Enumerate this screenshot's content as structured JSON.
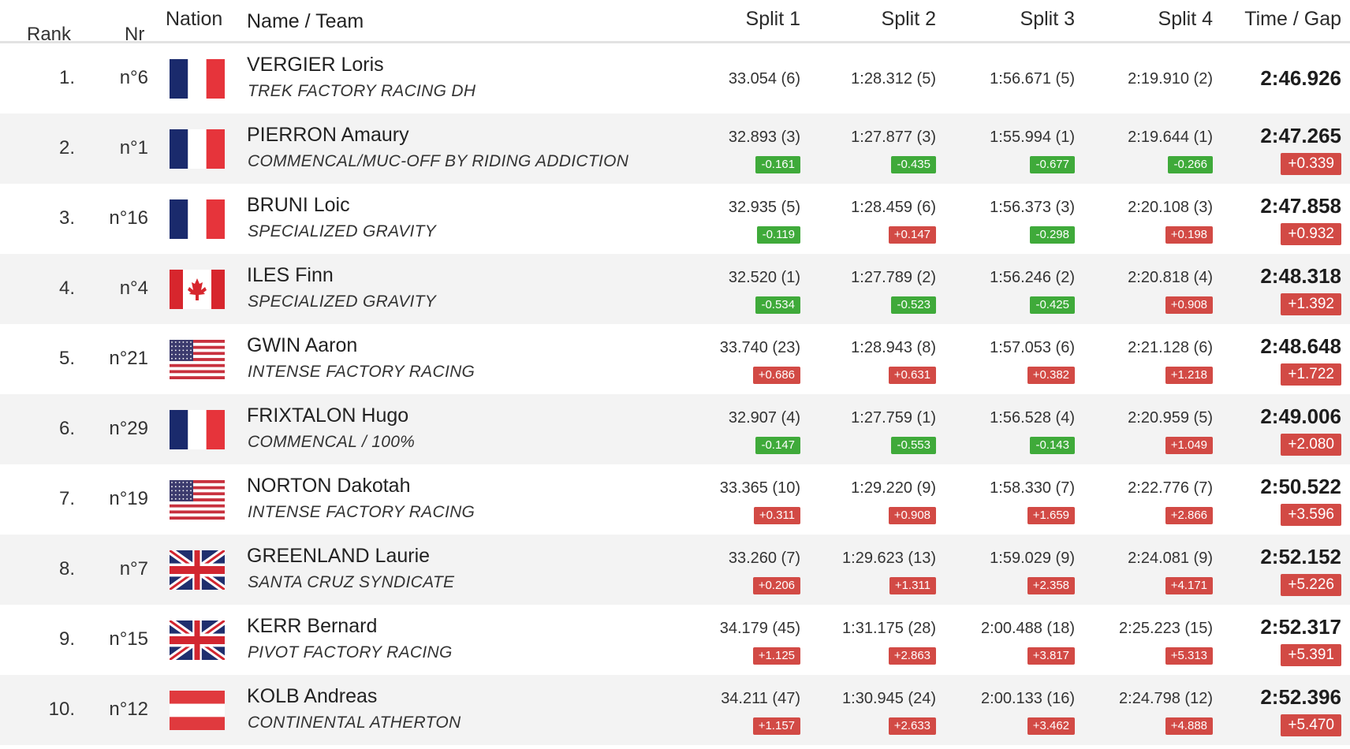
{
  "columns": {
    "rank": "Rank",
    "nr": "Nr",
    "nation": "Nation",
    "name_team": "Name / Team",
    "split1": "Split 1",
    "split2": "Split 2",
    "split3": "Split 3",
    "split4": "Split 4",
    "time_gap": "Time / Gap"
  },
  "rows": [
    {
      "rank": "1.",
      "nr": "n°6",
      "nation": "France",
      "flag_icon": "flag-france-icon",
      "name": "VERGIER Loris",
      "team": "TREK FACTORY RACING DH",
      "splits": [
        {
          "value": "33.054 (6)",
          "diff": ""
        },
        {
          "value": "1:28.312 (5)",
          "diff": ""
        },
        {
          "value": "1:56.671 (5)",
          "diff": ""
        },
        {
          "value": "2:19.910 (2)",
          "diff": ""
        }
      ],
      "time": "2:46.926",
      "gap": ""
    },
    {
      "rank": "2.",
      "nr": "n°1",
      "nation": "France",
      "flag_icon": "flag-france-icon",
      "name": "PIERRON Amaury",
      "team": "COMMENCAL/MUC-OFF BY RIDING ADDICTION",
      "splits": [
        {
          "value": "32.893 (3)",
          "diff": "-0.161"
        },
        {
          "value": "1:27.877 (3)",
          "diff": "-0.435"
        },
        {
          "value": "1:55.994 (1)",
          "diff": "-0.677"
        },
        {
          "value": "2:19.644 (1)",
          "diff": "-0.266"
        }
      ],
      "time": "2:47.265",
      "gap": "+0.339"
    },
    {
      "rank": "3.",
      "nr": "n°16",
      "nation": "France",
      "flag_icon": "flag-france-icon",
      "name": "BRUNI Loic",
      "team": "SPECIALIZED GRAVITY",
      "splits": [
        {
          "value": "32.935 (5)",
          "diff": "-0.119"
        },
        {
          "value": "1:28.459 (6)",
          "diff": "+0.147"
        },
        {
          "value": "1:56.373 (3)",
          "diff": "-0.298"
        },
        {
          "value": "2:20.108 (3)",
          "diff": "+0.198"
        }
      ],
      "time": "2:47.858",
      "gap": "+0.932"
    },
    {
      "rank": "4.",
      "nr": "n°4",
      "nation": "Canada",
      "flag_icon": "flag-canada-icon",
      "name": "ILES Finn",
      "team": "SPECIALIZED GRAVITY",
      "splits": [
        {
          "value": "32.520 (1)",
          "diff": "-0.534"
        },
        {
          "value": "1:27.789 (2)",
          "diff": "-0.523"
        },
        {
          "value": "1:56.246 (2)",
          "diff": "-0.425"
        },
        {
          "value": "2:20.818 (4)",
          "diff": "+0.908"
        }
      ],
      "time": "2:48.318",
      "gap": "+1.392"
    },
    {
      "rank": "5.",
      "nr": "n°21",
      "nation": "USA",
      "flag_icon": "flag-usa-icon",
      "name": "GWIN Aaron",
      "team": "INTENSE FACTORY RACING",
      "splits": [
        {
          "value": "33.740 (23)",
          "diff": "+0.686"
        },
        {
          "value": "1:28.943 (8)",
          "diff": "+0.631"
        },
        {
          "value": "1:57.053 (6)",
          "diff": "+0.382"
        },
        {
          "value": "2:21.128 (6)",
          "diff": "+1.218"
        }
      ],
      "time": "2:48.648",
      "gap": "+1.722"
    },
    {
      "rank": "6.",
      "nr": "n°29",
      "nation": "France",
      "flag_icon": "flag-france-icon",
      "name": "FRIXTALON Hugo",
      "team": "COMMENCAL / 100%",
      "splits": [
        {
          "value": "32.907 (4)",
          "diff": "-0.147"
        },
        {
          "value": "1:27.759 (1)",
          "diff": "-0.553"
        },
        {
          "value": "1:56.528 (4)",
          "diff": "-0.143"
        },
        {
          "value": "2:20.959 (5)",
          "diff": "+1.049"
        }
      ],
      "time": "2:49.006",
      "gap": "+2.080"
    },
    {
      "rank": "7.",
      "nr": "n°19",
      "nation": "USA",
      "flag_icon": "flag-usa-icon",
      "name": "NORTON Dakotah",
      "team": "INTENSE FACTORY RACING",
      "splits": [
        {
          "value": "33.365 (10)",
          "diff": "+0.311"
        },
        {
          "value": "1:29.220 (9)",
          "diff": "+0.908"
        },
        {
          "value": "1:58.330 (7)",
          "diff": "+1.659"
        },
        {
          "value": "2:22.776 (7)",
          "diff": "+2.866"
        }
      ],
      "time": "2:50.522",
      "gap": "+3.596"
    },
    {
      "rank": "8.",
      "nr": "n°7",
      "nation": "Great Britain",
      "flag_icon": "flag-uk-icon",
      "name": "GREENLAND Laurie",
      "team": "SANTA CRUZ SYNDICATE",
      "splits": [
        {
          "value": "33.260 (7)",
          "diff": "+0.206"
        },
        {
          "value": "1:29.623 (13)",
          "diff": "+1.311"
        },
        {
          "value": "1:59.029 (9)",
          "diff": "+2.358"
        },
        {
          "value": "2:24.081 (9)",
          "diff": "+4.171"
        }
      ],
      "time": "2:52.152",
      "gap": "+5.226"
    },
    {
      "rank": "9.",
      "nr": "n°15",
      "nation": "Great Britain",
      "flag_icon": "flag-uk-icon",
      "name": "KERR Bernard",
      "team": "PIVOT FACTORY RACING",
      "splits": [
        {
          "value": "34.179 (45)",
          "diff": "+1.125"
        },
        {
          "value": "1:31.175 (28)",
          "diff": "+2.863"
        },
        {
          "value": "2:00.488 (18)",
          "diff": "+3.817"
        },
        {
          "value": "2:25.223 (15)",
          "diff": "+5.313"
        }
      ],
      "time": "2:52.317",
      "gap": "+5.391"
    },
    {
      "rank": "10.",
      "nr": "n°12",
      "nation": "Austria",
      "flag_icon": "flag-austria-icon",
      "name": "KOLB Andreas",
      "team": "CONTINENTAL ATHERTON",
      "splits": [
        {
          "value": "34.211 (47)",
          "diff": "+1.157"
        },
        {
          "value": "1:30.945 (24)",
          "diff": "+2.633"
        },
        {
          "value": "2:00.133 (16)",
          "diff": "+3.462"
        },
        {
          "value": "2:24.798 (12)",
          "diff": "+4.888"
        }
      ],
      "time": "2:52.396",
      "gap": "+5.470"
    }
  ],
  "colors": {
    "faster_badge": "#3faa3a",
    "slower_badge": "#d24a45",
    "alt_row": "#f3f3f3",
    "header_rule": "#e2e2e2"
  }
}
